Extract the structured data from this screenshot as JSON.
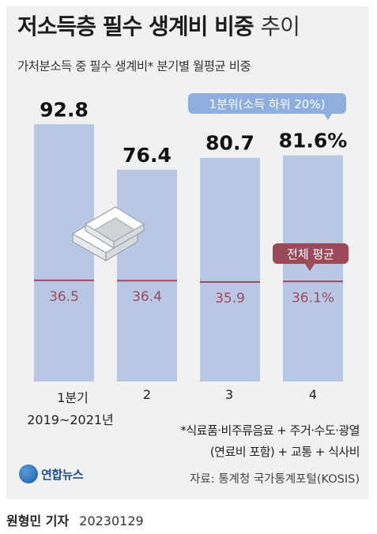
{
  "title": {
    "main": "저소득층 필수 생계비 비중",
    "suffix": "추이"
  },
  "subtitle": "가처분소득 중 필수 생계비* 분기별 월평균 비중",
  "legend": {
    "bottom_quintile_label": "1분위(소득 하위 20%)",
    "overall_avg_label": "전체 평균"
  },
  "x_year_label": "2019~2021년",
  "chart_data": {
    "type": "bar",
    "categories": [
      "1분기",
      "2",
      "3",
      "4"
    ],
    "series": [
      {
        "name": "1분위(소득 하위 20%)",
        "values": [
          92.8,
          76.4,
          80.7,
          81.6
        ],
        "labels": [
          "92.8",
          "76.4",
          "80.7",
          "81.6%"
        ],
        "color": "#b8c8e4"
      },
      {
        "name": "전체 평균",
        "values": [
          36.5,
          36.4,
          35.9,
          36.1
        ],
        "labels": [
          "36.5",
          "36.4",
          "35.9",
          "36.1%"
        ],
        "color": "#a04a5e"
      }
    ],
    "ylim": [
      0,
      100
    ],
    "title": "저소득층 필수 생계비 비중 추이",
    "subtitle": "가처분소득 중 필수 생계비* 분기별 월평균 비중"
  },
  "colors": {
    "bar": "#b8c8e4",
    "avg_line": "#a04a5e",
    "avg_text": "#a04a5e",
    "legend_blue_bg": "#8faee0",
    "legend_red_bg": "#9c4a5a",
    "background": "#f1f1f1"
  },
  "note_lines": [
    "*식료품·비주류음료 + 주거·수도·광열",
    "(연료비 포함) + 교통 + 식사비"
  ],
  "logo_text": "연합뉴스",
  "source": "자료: 통계청 국가통계포털(KOSIS)",
  "byline": {
    "name": "원형민 기자",
    "date": "20230129"
  }
}
